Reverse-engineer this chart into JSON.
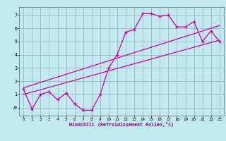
{
  "xlabel": "Windchill (Refroidissement éolien,°C)",
  "ylabel": "",
  "xlim": [
    -0.5,
    23.5
  ],
  "ylim": [
    -0.6,
    7.6
  ],
  "xticks": [
    0,
    1,
    2,
    3,
    4,
    5,
    6,
    7,
    8,
    9,
    10,
    11,
    12,
    13,
    14,
    15,
    16,
    17,
    18,
    19,
    20,
    21,
    22,
    23
  ],
  "yticks": [
    0,
    1,
    2,
    3,
    4,
    5,
    6,
    7
  ],
  "ytick_labels": [
    "-0",
    "1",
    "2",
    "3",
    "4",
    "5",
    "6",
    "7"
  ],
  "background_color": "#c2e8f0",
  "grid_color": "#9ab8c0",
  "line_color": "#cc00aa",
  "line1_x": [
    0,
    1,
    2,
    3,
    4,
    5,
    6,
    7,
    8,
    9,
    10,
    11,
    12,
    13,
    14,
    15,
    16,
    17,
    18,
    19,
    20,
    21,
    22,
    23
  ],
  "line1_y": [
    1.4,
    -0.1,
    1.0,
    1.2,
    0.6,
    1.1,
    0.3,
    -0.2,
    -0.2,
    1.0,
    3.0,
    4.0,
    5.7,
    5.9,
    7.1,
    7.1,
    6.9,
    7.0,
    6.1,
    6.1,
    6.5,
    5.0,
    5.8,
    5.0
  ],
  "line2_x": [
    0,
    23
  ],
  "line2_y": [
    1.0,
    5.1
  ],
  "line3_x": [
    0,
    23
  ],
  "line3_y": [
    1.5,
    6.2
  ]
}
